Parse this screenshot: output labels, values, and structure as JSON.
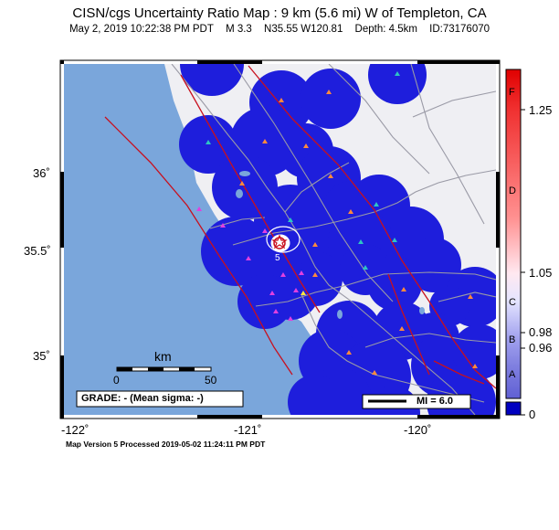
{
  "header": {
    "title": "CISN/cgs Uncertainty Ratio Map : 9 km (5.6 mi) W of Templeton, CA",
    "date": "May  2, 2019 10:22:38 PM PDT",
    "magnitude": "M 3.3",
    "location": "N35.55 W120.81",
    "depth": "Depth: 4.5km",
    "event_id": "ID:73176070"
  },
  "axes": {
    "x_ticks": [
      "-122˚",
      "-121˚",
      "-120˚"
    ],
    "y_ticks": [
      "36˚",
      "35.5˚",
      "35˚"
    ]
  },
  "scale_bar": {
    "unit": "km",
    "start": "0",
    "end": "50"
  },
  "grade_box": {
    "text": "GRADE: - (Mean sigma: -)"
  },
  "mi_legend": {
    "text": "MI = 6.0"
  },
  "colorbar": {
    "letters": [
      "F",
      "D",
      "C",
      "B",
      "A"
    ],
    "values": [
      "1.25",
      "1.05",
      "0.98",
      "0.96",
      "0"
    ]
  },
  "footer": {
    "text": "Map Version 5 Processed 2019-05-02 11:24:11 PM PDT"
  },
  "colors": {
    "station_circle": "#1e1edc",
    "ocean": "#7aa6db",
    "land": "#efeff3",
    "fault": "#c8101e"
  }
}
